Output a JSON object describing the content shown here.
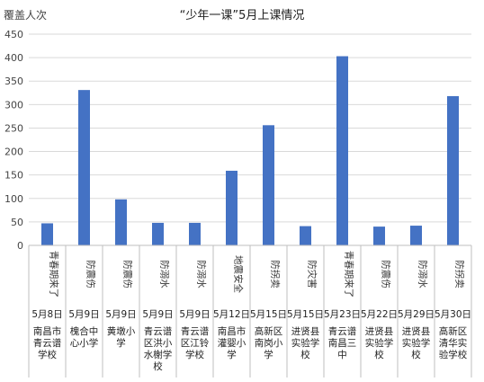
{
  "chart_data": {
    "type": "bar",
    "title": "“少年一课”5月上课情况",
    "ylabel": "覆盖人次",
    "ylim": [
      0,
      450
    ],
    "yticks": [
      0,
      50,
      100,
      150,
      200,
      250,
      300,
      350,
      400,
      450
    ],
    "grid": true,
    "categories": [
      {
        "topic": "青春期来了",
        "date": "5月8日",
        "school": "南昌市青云谱学校"
      },
      {
        "topic": "防震伤",
        "date": "5月9日",
        "school": "槐合中心小学"
      },
      {
        "topic": "防震伤",
        "date": "5月9日",
        "school": "黄墩小学"
      },
      {
        "topic": "防溺水",
        "date": "5月9日",
        "school": "青云谱区洪小水榭学校"
      },
      {
        "topic": "防溺水",
        "date": "5月9日",
        "school": "青云谱区江铃学校"
      },
      {
        "topic": "地震安全",
        "date": "5月12日",
        "school": "南昌市灌婴小学"
      },
      {
        "topic": "防拐卖",
        "date": "5月15日",
        "school": "高新区南岗小学"
      },
      {
        "topic": "防灾害",
        "date": "5月15日",
        "school": "进贤县实验学校"
      },
      {
        "topic": "青春期来了",
        "date": "5月23日",
        "school": "青云谱南昌三中"
      },
      {
        "topic": "防震伤",
        "date": "5月22日",
        "school": "进贤县实验学校"
      },
      {
        "topic": "防溺水",
        "date": "5月29日",
        "school": "进贤县实验学校"
      },
      {
        "topic": "防拐卖",
        "date": "5月30日",
        "school": "高新区清华实验学校"
      }
    ],
    "values": [
      47,
      331,
      98,
      48,
      48,
      159,
      256,
      41,
      403,
      40,
      42,
      318
    ],
    "bar_color": "#4472c4"
  }
}
